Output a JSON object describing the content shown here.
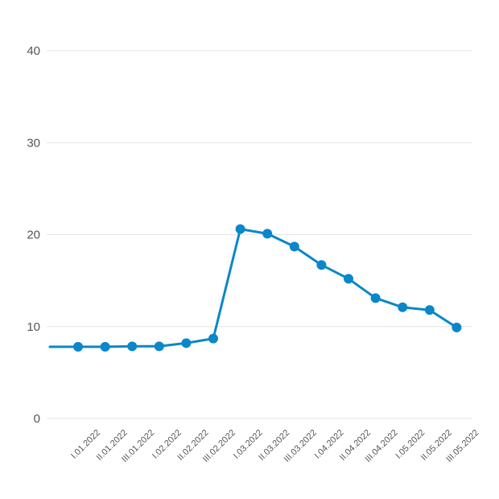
{
  "chart_data": {
    "type": "line",
    "title": "",
    "xlabel": "",
    "ylabel": "",
    "ylim": [
      0,
      40
    ],
    "yticks": [
      0,
      10,
      20,
      30,
      40
    ],
    "grid": true,
    "colors": {
      "series": "#0a87c9",
      "grid": "#e6e6e6",
      "text": "#555555"
    },
    "categories": [
      "I.01.2022",
      "II.01.2022",
      "III.01.2022",
      "I.02.2022",
      "II.02.2022",
      "III.02.2022",
      "I.03.2022",
      "II.03.2022",
      "III.03.2022",
      "I.04.2022",
      "II.04.2022",
      "III.04.2022",
      "I.05.2022",
      "II.05.2022",
      "III.05.2022"
    ],
    "series": [
      {
        "values": [
          7.8,
          7.8,
          7.85,
          7.85,
          8.2,
          8.7,
          20.6,
          20.1,
          18.7,
          16.7,
          15.2,
          13.1,
          12.1,
          11.8,
          9.9
        ],
        "lead_in_value": 7.8
      }
    ]
  }
}
